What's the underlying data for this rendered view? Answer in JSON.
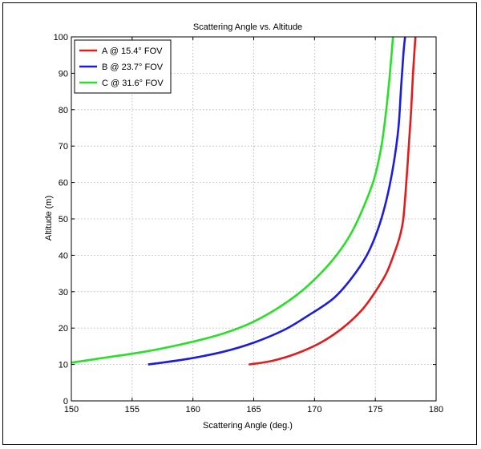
{
  "chart_data": {
    "type": "line",
    "title": "Scattering Angle vs. Altitude",
    "xlabel": "Scattering Angle (deg.)",
    "ylabel": "Altitude (m)",
    "xlim": [
      150,
      180
    ],
    "ylim": [
      0,
      100
    ],
    "xticks": [
      150,
      155,
      160,
      165,
      170,
      175,
      180
    ],
    "yticks": [
      0,
      10,
      20,
      30,
      40,
      50,
      60,
      70,
      80,
      90,
      100
    ],
    "grid": true,
    "legend_position": "top-left",
    "series": [
      {
        "name": "A @ 15.4° FOV",
        "color": "#e21b1b",
        "points": [
          [
            164.6,
            10
          ],
          [
            166.5,
            11
          ],
          [
            168.5,
            13
          ],
          [
            170.5,
            16
          ],
          [
            172.3,
            20
          ],
          [
            173.9,
            25
          ],
          [
            175.0,
            30
          ],
          [
            175.9,
            35
          ],
          [
            176.5,
            40
          ],
          [
            177.0,
            45
          ],
          [
            177.3,
            50
          ],
          [
            177.55,
            60
          ],
          [
            177.75,
            70
          ],
          [
            177.95,
            80
          ],
          [
            178.1,
            90
          ],
          [
            178.3,
            100
          ]
        ]
      },
      {
        "name": "B @ 23.7° FOV",
        "color": "#1b1be2",
        "points": [
          [
            156.3,
            10
          ],
          [
            159.5,
            11.5
          ],
          [
            162.5,
            13.5
          ],
          [
            165.0,
            16
          ],
          [
            167.5,
            19.5
          ],
          [
            169.5,
            23.5
          ],
          [
            171.5,
            28
          ],
          [
            173.0,
            33.5
          ],
          [
            174.3,
            40
          ],
          [
            175.2,
            47
          ],
          [
            175.9,
            55
          ],
          [
            176.5,
            65
          ],
          [
            176.9,
            75
          ],
          [
            177.1,
            85
          ],
          [
            177.3,
            95
          ],
          [
            177.45,
            100
          ]
        ]
      },
      {
        "name": "C @ 31.6° FOV",
        "color": "#28e028",
        "points": [
          [
            150.0,
            10.5
          ],
          [
            153.0,
            12
          ],
          [
            156.0,
            13.5
          ],
          [
            159.0,
            15.5
          ],
          [
            162.0,
            18
          ],
          [
            164.5,
            21
          ],
          [
            166.5,
            24.5
          ],
          [
            168.5,
            29
          ],
          [
            170.2,
            34
          ],
          [
            171.8,
            40
          ],
          [
            173.0,
            46
          ],
          [
            174.0,
            53
          ],
          [
            174.9,
            61
          ],
          [
            175.5,
            70
          ],
          [
            175.9,
            80
          ],
          [
            176.2,
            90
          ],
          [
            176.45,
            100
          ]
        ]
      }
    ]
  }
}
